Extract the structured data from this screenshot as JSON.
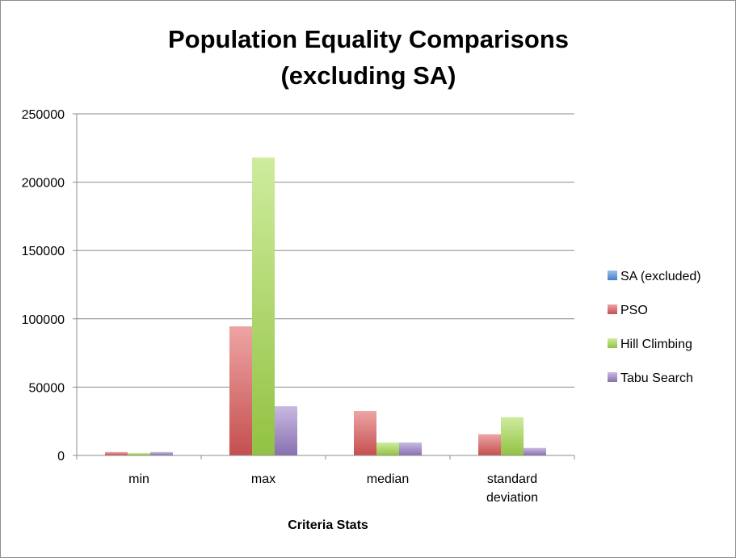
{
  "chart_data": {
    "type": "bar",
    "title": [
      "Population Equality Comparisons",
      "(excluding SA)"
    ],
    "xlabel": "Criteria Stats",
    "ylabel": "",
    "categories": [
      [
        "min"
      ],
      [
        "max"
      ],
      [
        "median"
      ],
      [
        "standard",
        "deviation"
      ]
    ],
    "ylim": [
      0,
      250000
    ],
    "yticks": [
      0,
      50000,
      100000,
      150000,
      200000,
      250000
    ],
    "ytick_labels": [
      "0",
      "50000",
      "100000",
      "150000",
      "200000",
      "250000"
    ],
    "grid": true,
    "legend_position": "right",
    "series": [
      {
        "name": "SA (excluded)",
        "color": "#4f8fdf",
        "values": [
          0,
          0,
          0,
          0
        ]
      },
      {
        "name": "PSO",
        "color": "#e05a5a",
        "values": [
          2500,
          94500,
          32500,
          15500
        ]
      },
      {
        "name": "Hill Climbing",
        "color": "#a6dc4c",
        "values": [
          1800,
          218000,
          9500,
          28000
        ]
      },
      {
        "name": "Tabu Search",
        "color": "#9b7fc8",
        "values": [
          2500,
          36000,
          9500,
          5500
        ]
      }
    ]
  }
}
